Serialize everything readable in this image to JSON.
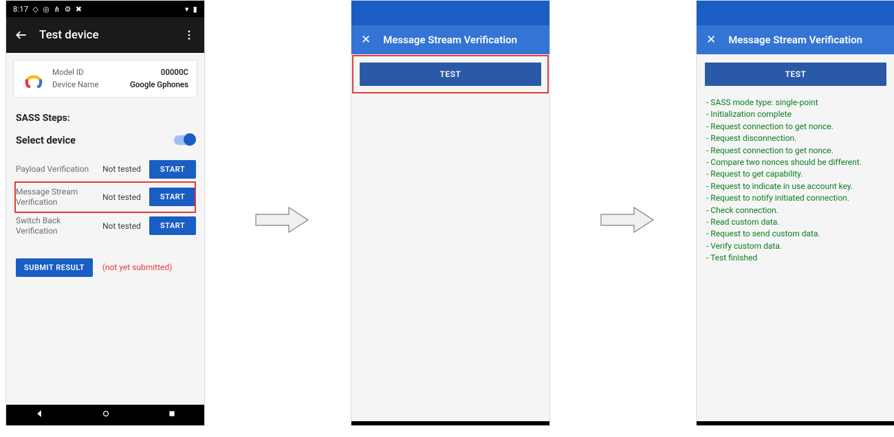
{
  "colors": {
    "accent": "#1a5ec4",
    "accent_light": "#3474d4",
    "highlight": "#e53935",
    "log_ok": "#0a7f1f",
    "status_bg": "#000000",
    "body_bg": "#f5f5f5"
  },
  "phone1": {
    "status": {
      "time": "8:17",
      "icons_left": [
        "◇",
        "◎",
        "⋔",
        "⚙",
        "✖"
      ],
      "icons_right": [
        "▾",
        "▮"
      ]
    },
    "appbar": {
      "title": "Test device"
    },
    "device": {
      "model_id_label": "Model ID",
      "model_id_value": "00000C",
      "device_name_label": "Device Name",
      "device_name_value": "Google Gphones"
    },
    "sass_heading": "SASS Steps:",
    "select_label": "Select device",
    "switch_on": true,
    "steps": [
      {
        "name": "Payload Verification",
        "status": "Not tested",
        "action": "START",
        "highlighted": false
      },
      {
        "name": "Message Stream Verification",
        "status": "Not tested",
        "action": "START",
        "highlighted": true
      },
      {
        "name": "Switch Back Verification",
        "status": "Not tested",
        "action": "START",
        "highlighted": false
      }
    ],
    "submit_label": "SUBMIT RESULT",
    "submit_status": "(not yet submitted)"
  },
  "phone2": {
    "title": "Message Stream Verification",
    "test_button": "TEST",
    "test_highlighted": true
  },
  "phone3": {
    "title": "Message Stream Verification",
    "test_button": "TEST",
    "test_highlighted": false,
    "log": [
      "SASS mode type: single-point",
      "Initialization complete",
      "Request connection to get nonce.",
      "Request disconnection.",
      "Request connection to get nonce.",
      "Compare two nonces should be different.",
      "Request to get capability.",
      "Request to indicate in use account key.",
      "Request to notify initiated connection.",
      "Check connection.",
      "Read custom data.",
      "Request to send custom data.",
      "Verify custom data.",
      "Test finished"
    ]
  }
}
